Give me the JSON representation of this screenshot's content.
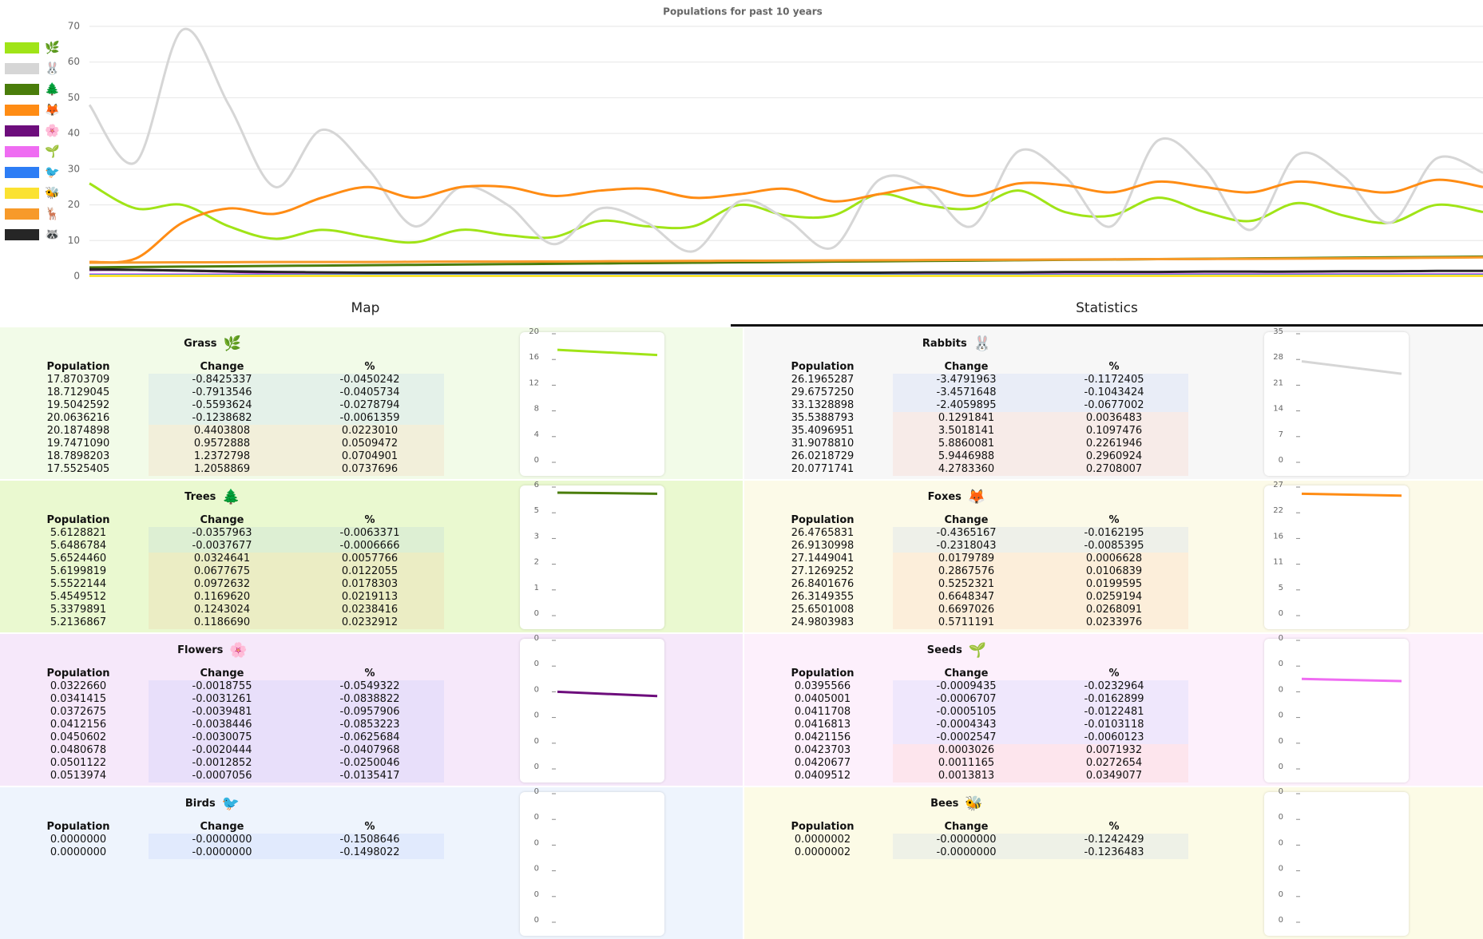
{
  "chart_data": {
    "type": "line",
    "title": "Populations for past 10 years",
    "ylim": [
      0,
      70
    ],
    "yticks": [
      0,
      10,
      20,
      30,
      40,
      50,
      60,
      70
    ],
    "grid": true,
    "legend": "left",
    "series": [
      {
        "name": "🌿",
        "color": "#a0e417",
        "values": [
          26,
          19,
          20,
          14,
          10.5,
          13,
          11,
          9.5,
          13,
          11.5,
          11,
          15.5,
          14,
          14,
          20,
          17,
          17,
          23,
          20,
          19,
          24,
          18,
          17,
          22,
          18,
          15.5,
          20.5,
          17,
          15,
          20,
          18
        ]
      },
      {
        "name": "🐰",
        "color": "#d6d6d6",
        "values": [
          48,
          32,
          69,
          48,
          25,
          41,
          30,
          14,
          25,
          20,
          9,
          19,
          15,
          7,
          21,
          16,
          8,
          27,
          25,
          14,
          35,
          28,
          14,
          38,
          30,
          13,
          34,
          28,
          15,
          33,
          29
        ]
      },
      {
        "name": "🌲",
        "color": "#4a7d0b",
        "values": [
          2.5,
          2.6,
          2.7,
          2.8,
          2.9,
          3,
          3.1,
          3.2,
          3.3,
          3.4,
          3.5,
          3.6,
          3.7,
          3.8,
          3.9,
          4,
          4.1,
          4.2,
          4.3,
          4.4,
          4.5,
          4.6,
          4.7,
          4.8,
          4.9,
          5,
          5.1,
          5.2,
          5.3,
          5.4,
          5.5
        ]
      },
      {
        "name": "🦊",
        "color": "#ff8c14",
        "values": [
          4,
          5,
          15,
          19,
          17.5,
          22,
          25,
          22,
          25,
          25,
          22.5,
          24,
          24.5,
          22,
          23,
          24.5,
          21,
          23,
          25,
          22.5,
          26,
          25.5,
          23.5,
          26.5,
          25,
          23.5,
          26.5,
          25,
          23.5,
          27,
          25
        ]
      },
      {
        "name": "🌸",
        "color": "#6d0d7c",
        "values": [
          1.8,
          1.8,
          1.6,
          1.3,
          1,
          0.9,
          0.8,
          0.7,
          0.7,
          0.6,
          0.6,
          0.6,
          0.6,
          0.5,
          0.5,
          0.5,
          0.5,
          0.5,
          0.5,
          0.5,
          0.5,
          0.5,
          0.5,
          0.5,
          0.5,
          0.5,
          0.5,
          0.5,
          0.5,
          0.5,
          0.5
        ]
      },
      {
        "name": "🌱",
        "color": "#ef6cf2",
        "values": [
          0.5,
          0.5,
          0.5,
          0.5,
          0.5,
          0.5,
          0.5,
          0.5,
          0.5,
          0.5,
          0.5,
          0.5,
          0.5,
          0.5,
          0.5,
          0.5,
          0.5,
          0.5,
          0.5,
          0.5,
          0.5,
          0.5,
          0.5,
          0.5,
          0.5,
          0.5,
          0.5,
          0.5,
          0.5,
          0.5,
          0.5
        ]
      },
      {
        "name": "🐦",
        "color": "#2d7df5",
        "values": [
          0.3,
          0.3,
          0.3,
          0.3,
          0.3,
          0.3,
          0.3,
          0.3,
          0.3,
          0.3,
          0.3,
          0.3,
          0.3,
          0.3,
          0.3,
          0.3,
          0.3,
          0.3,
          0.3,
          0.3,
          0.3,
          0.3,
          0.3,
          0.3,
          0.3,
          0.3,
          0.3,
          0.3,
          0.3,
          0.3,
          0.3
        ]
      },
      {
        "name": "🐝",
        "color": "#fbe232",
        "values": [
          0.1,
          0.1,
          0.1,
          0.1,
          0.1,
          0.1,
          0.1,
          0.1,
          0.1,
          0.1,
          0.1,
          0.1,
          0.1,
          0.1,
          0.1,
          0.1,
          0.1,
          0.1,
          0.1,
          0.1,
          0.1,
          0.1,
          0.1,
          0.1,
          0.1,
          0.1,
          0.1,
          0.1,
          0.1,
          0.1,
          0.1
        ]
      },
      {
        "name": "🦌",
        "color": "#f79a2a",
        "values": [
          3.8,
          3.85,
          3.9,
          3.95,
          4,
          4,
          4,
          4.05,
          4.1,
          4.1,
          4.15,
          4.2,
          4.25,
          4.3,
          4.35,
          4.4,
          4.45,
          4.5,
          4.55,
          4.6,
          4.65,
          4.7,
          4.75,
          4.8,
          4.85,
          4.9,
          4.95,
          5,
          5.1,
          5.2,
          5.3
        ]
      },
      {
        "name": "🦝",
        "color": "#262626",
        "values": [
          2,
          1.8,
          1.6,
          1.4,
          1.2,
          1.1,
          1,
          1,
          1,
          1,
          1,
          1,
          1,
          1,
          1,
          1,
          1,
          1,
          1.1,
          1.1,
          1.1,
          1.2,
          1.2,
          1.2,
          1.3,
          1.3,
          1.3,
          1.4,
          1.4,
          1.5,
          1.5
        ]
      }
    ]
  },
  "tabs": [
    {
      "label": "Map"
    },
    {
      "label": "Statistics",
      "active": true
    }
  ],
  "panels": [
    {
      "title": "Grass",
      "icon": "🌿",
      "background": "#f2fbe8",
      "color": "#a0e417",
      "columns": [
        "Population",
        "Change",
        "%"
      ],
      "rows": [
        [
          "17.8703709",
          "-0.8425337",
          "-0.0450242"
        ],
        [
          "18.7129045",
          "-0.7913546",
          "-0.0405734"
        ],
        [
          "19.5042592",
          "-0.5593624",
          "-0.0278794"
        ],
        [
          "20.0636216",
          "-0.1238682",
          "-0.0061359"
        ],
        [
          "20.1874898",
          "0.4403808",
          "0.0223010"
        ],
        [
          "19.7471090",
          "0.9572888",
          "0.0509472"
        ],
        [
          "18.7898203",
          "1.2372798",
          "0.0704901"
        ],
        [
          "17.5525405",
          "1.2058869",
          "0.0737696"
        ]
      ],
      "mini_chart": {
        "ylim": [
          0,
          20
        ],
        "yticks": [
          0,
          4,
          8,
          12,
          16,
          20
        ],
        "values": [
          17.5,
          16.7
        ]
      }
    },
    {
      "title": "Rabbits",
      "icon": "🐰",
      "background": "#f7f7f7",
      "color": "#d6d6d6",
      "columns": [
        "Population",
        "Change",
        "%"
      ],
      "rows": [
        [
          "26.1965287",
          "-3.4791963",
          "-0.1172405"
        ],
        [
          "29.6757250",
          "-3.4571648",
          "-0.1043424"
        ],
        [
          "33.1328898",
          "-2.4059895",
          "-0.0677002"
        ],
        [
          "35.5388793",
          "0.1291841",
          "0.0036483"
        ],
        [
          "35.4096951",
          "3.5018141",
          "0.1097476"
        ],
        [
          "31.9078810",
          "5.8860081",
          "0.2261946"
        ],
        [
          "26.0218729",
          "5.9446988",
          "0.2960924"
        ],
        [
          "20.0771741",
          "4.2783360",
          "0.2708007"
        ]
      ],
      "mini_chart": {
        "ylim": [
          0,
          35
        ],
        "yticks": [
          0,
          7,
          14,
          21,
          28,
          35
        ],
        "values": [
          27.5,
          24.1
        ]
      }
    },
    {
      "title": "Trees",
      "icon": "🌲",
      "background": "#eaf9d0",
      "color": "#4a7d0b",
      "columns": [
        "Population",
        "Change",
        "%"
      ],
      "rows": [
        [
          "5.6128821",
          "-0.0357963",
          "-0.0063371"
        ],
        [
          "5.6486784",
          "-0.0037677",
          "-0.0006666"
        ],
        [
          "5.6524460",
          "0.0324641",
          "0.0057766"
        ],
        [
          "5.6199819",
          "0.0677675",
          "0.0122055"
        ],
        [
          "5.5522144",
          "0.0972632",
          "0.0178303"
        ],
        [
          "5.4549512",
          "0.1169620",
          "0.0219113"
        ],
        [
          "5.3379891",
          "0.1243024",
          "0.0238416"
        ],
        [
          "5.2136867",
          "0.1186690",
          "0.0232912"
        ]
      ],
      "mini_chart": {
        "ylim": [
          0,
          5.8
        ],
        "yticks": [
          0,
          {
            "value": 1.16,
            "label": "1"
          },
          {
            "value": 2.32,
            "label": "2"
          },
          {
            "value": 3.48,
            "label": "3"
          },
          {
            "value": 4.64,
            "label": "5"
          },
          {
            "value": 5.8,
            "label": "6"
          }
        ],
        "values": [
          5.55,
          5.5
        ]
      }
    },
    {
      "title": "Foxes",
      "icon": "🦊",
      "background": "#fcfae8",
      "color": "#ff8c14",
      "columns": [
        "Population",
        "Change",
        "%"
      ],
      "rows": [
        [
          "26.4765831",
          "-0.4365167",
          "-0.0162195"
        ],
        [
          "26.9130998",
          "-0.2318043",
          "-0.0085395"
        ],
        [
          "27.1449041",
          "0.0179789",
          "0.0006628"
        ],
        [
          "27.1269252",
          "0.2867576",
          "0.0106839"
        ],
        [
          "26.8401676",
          "0.5252321",
          "0.0199595"
        ],
        [
          "26.3149355",
          "0.6648347",
          "0.0259194"
        ],
        [
          "25.6501008",
          "0.6697026",
          "0.0268091"
        ],
        [
          "24.9803983",
          "0.5711191",
          "0.0233976"
        ]
      ],
      "mini_chart": {
        "ylim": [
          0,
          27
        ],
        "yticks": [
          0,
          {
            "value": 5.4,
            "label": "5"
          },
          {
            "value": 10.8,
            "label": "11"
          },
          {
            "value": 16.2,
            "label": "16"
          },
          {
            "value": 21.6,
            "label": "22"
          },
          27
        ],
        "values": [
          25.6,
          25.2
        ]
      }
    },
    {
      "title": "Flowers",
      "icon": "🌸",
      "background": "#f6e8fa",
      "color": "#6d0d7c",
      "columns": [
        "Population",
        "Change",
        "%"
      ],
      "rows": [
        [
          "0.0322660",
          "-0.0018755",
          "-0.0549322"
        ],
        [
          "0.0341415",
          "-0.0031261",
          "-0.0838822"
        ],
        [
          "0.0372675",
          "-0.0039481",
          "-0.0957906"
        ],
        [
          "0.0412156",
          "-0.0038446",
          "-0.0853223"
        ],
        [
          "0.0450602",
          "-0.0030075",
          "-0.0625684"
        ],
        [
          "0.0480678",
          "-0.0020444",
          "-0.0407968"
        ],
        [
          "0.0501122",
          "-0.0012852",
          "-0.0250046"
        ],
        [
          "0.0513974",
          "-0.0007056",
          "-0.0135417"
        ]
      ],
      "mini_chart": {
        "ylim": [
          0,
          0.06
        ],
        "yticks": [
          0,
          {
            "value": 0.012,
            "label": "0"
          },
          {
            "value": 0.024,
            "label": "0"
          },
          {
            "value": 0.036,
            "label": "0"
          },
          {
            "value": 0.048,
            "label": "0"
          },
          {
            "value": 0.06,
            "label": "0"
          }
        ],
        "values": [
          0.036,
          0.034
        ]
      }
    },
    {
      "title": "Seeds",
      "icon": "🌱",
      "background": "#fdf0fc",
      "color": "#ef6cf2",
      "columns": [
        "Population",
        "Change",
        "%"
      ],
      "rows": [
        [
          "0.0395566",
          "-0.0009435",
          "-0.0232964"
        ],
        [
          "0.0405001",
          "-0.0006707",
          "-0.0162899"
        ],
        [
          "0.0411708",
          "-0.0005105",
          "-0.0122481"
        ],
        [
          "0.0416813",
          "-0.0004343",
          "-0.0103118"
        ],
        [
          "0.0421156",
          "-0.0002547",
          "-0.0060123"
        ],
        [
          "0.0423703",
          "0.0003026",
          "0.0071932"
        ],
        [
          "0.0420677",
          "0.0011165",
          "0.0272654"
        ],
        [
          "0.0409512",
          "0.0013813",
          "0.0349077"
        ]
      ],
      "mini_chart": {
        "ylim": [
          0,
          0.06
        ],
        "yticks": [
          0,
          {
            "value": 0.012,
            "label": "0"
          },
          {
            "value": 0.024,
            "label": "0"
          },
          {
            "value": 0.036,
            "label": "0"
          },
          {
            "value": 0.048,
            "label": "0"
          },
          {
            "value": 0.06,
            "label": "0"
          }
        ],
        "values": [
          0.042,
          0.041
        ]
      }
    },
    {
      "title": "Birds",
      "icon": "🐦",
      "background": "#eef4fd",
      "color": "#2d7df5",
      "columns": [
        "Population",
        "Change",
        "%"
      ],
      "rows": [
        [
          "0.0000000",
          "-0.0000000",
          "-0.1508646"
        ],
        [
          "0.0000000",
          "-0.0000000",
          "-0.1498022"
        ]
      ],
      "mini_chart": {
        "ylim": [
          0,
          0.06
        ],
        "yticks": [
          0,
          {
            "value": 0.012,
            "label": "0"
          },
          {
            "value": 0.024,
            "label": "0"
          },
          {
            "value": 0.036,
            "label": "0"
          },
          {
            "value": 0.048,
            "label": "0"
          },
          {
            "value": 0.06,
            "label": "0"
          }
        ]
      }
    },
    {
      "title": "Bees",
      "icon": "🐝",
      "background": "#fcfbe6",
      "color": "#fbe232",
      "columns": [
        "Population",
        "Change",
        "%"
      ],
      "rows": [
        [
          "0.0000002",
          "-0.0000000",
          "-0.1242429"
        ],
        [
          "0.0000002",
          "-0.0000000",
          "-0.1236483"
        ]
      ],
      "mini_chart": {
        "ylim": [
          0,
          0.06
        ],
        "yticks": [
          0,
          {
            "value": 0.012,
            "label": "0"
          },
          {
            "value": 0.024,
            "label": "0"
          },
          {
            "value": 0.036,
            "label": "0"
          },
          {
            "value": 0.048,
            "label": "0"
          },
          {
            "value": 0.06,
            "label": "0"
          }
        ]
      }
    }
  ]
}
